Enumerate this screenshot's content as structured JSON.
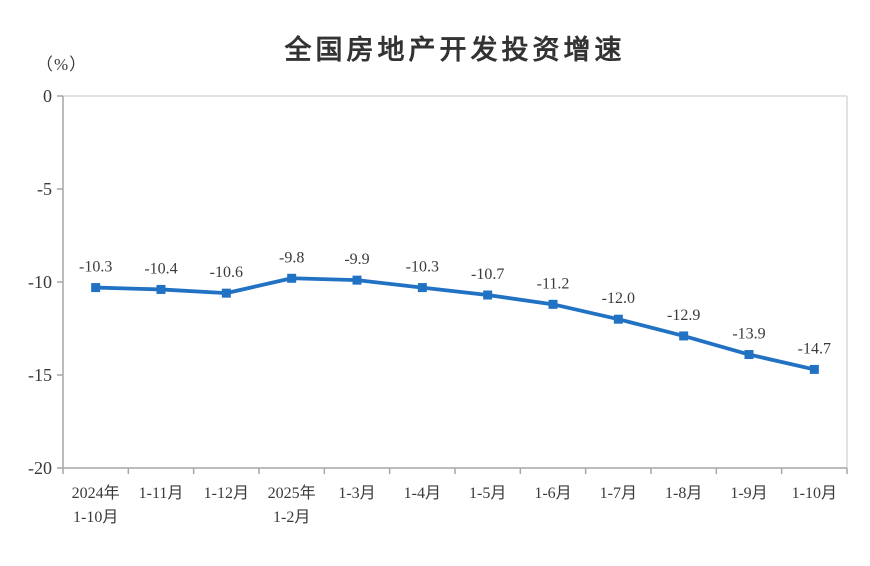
{
  "page": {
    "background": "#ffffff"
  },
  "chart_data": {
    "type": "line",
    "title": "全国房地产开发投资增速",
    "unit_label": "（%）",
    "categories": [
      "2024年\n1-10月",
      "1-11月",
      "1-12月",
      "2025年\n1-2月",
      "1-3月",
      "1-4月",
      "1-5月",
      "1-6月",
      "1-7月",
      "1-8月",
      "1-9月",
      "1-10月"
    ],
    "values": [
      -10.3,
      -10.4,
      -10.6,
      -9.8,
      -9.9,
      -10.3,
      -10.7,
      -11.2,
      -12.0,
      -12.9,
      -13.9,
      -14.7
    ],
    "data_labels": [
      "-10.3",
      "-10.4",
      "-10.6",
      "-9.8",
      "-9.9",
      "-10.3",
      "-10.7",
      "-11.2",
      "-12.0",
      "-12.9",
      "-13.9",
      "-14.7"
    ],
    "xlabel": "",
    "ylabel": "（%）",
    "ylim": [
      -20,
      0
    ],
    "y_ticks": [
      0,
      -5,
      -10,
      -15,
      -20
    ],
    "grid": false,
    "legend": "none",
    "marker": "square",
    "colors": {
      "line": "#2272c4",
      "marker": "#2272c4",
      "title_text": "#333333",
      "tick_text": "#3a3a3a",
      "data_label_text": "#3b3b3b",
      "axis": "#a6a6a6",
      "plot_border": "#d9d9d9"
    }
  }
}
